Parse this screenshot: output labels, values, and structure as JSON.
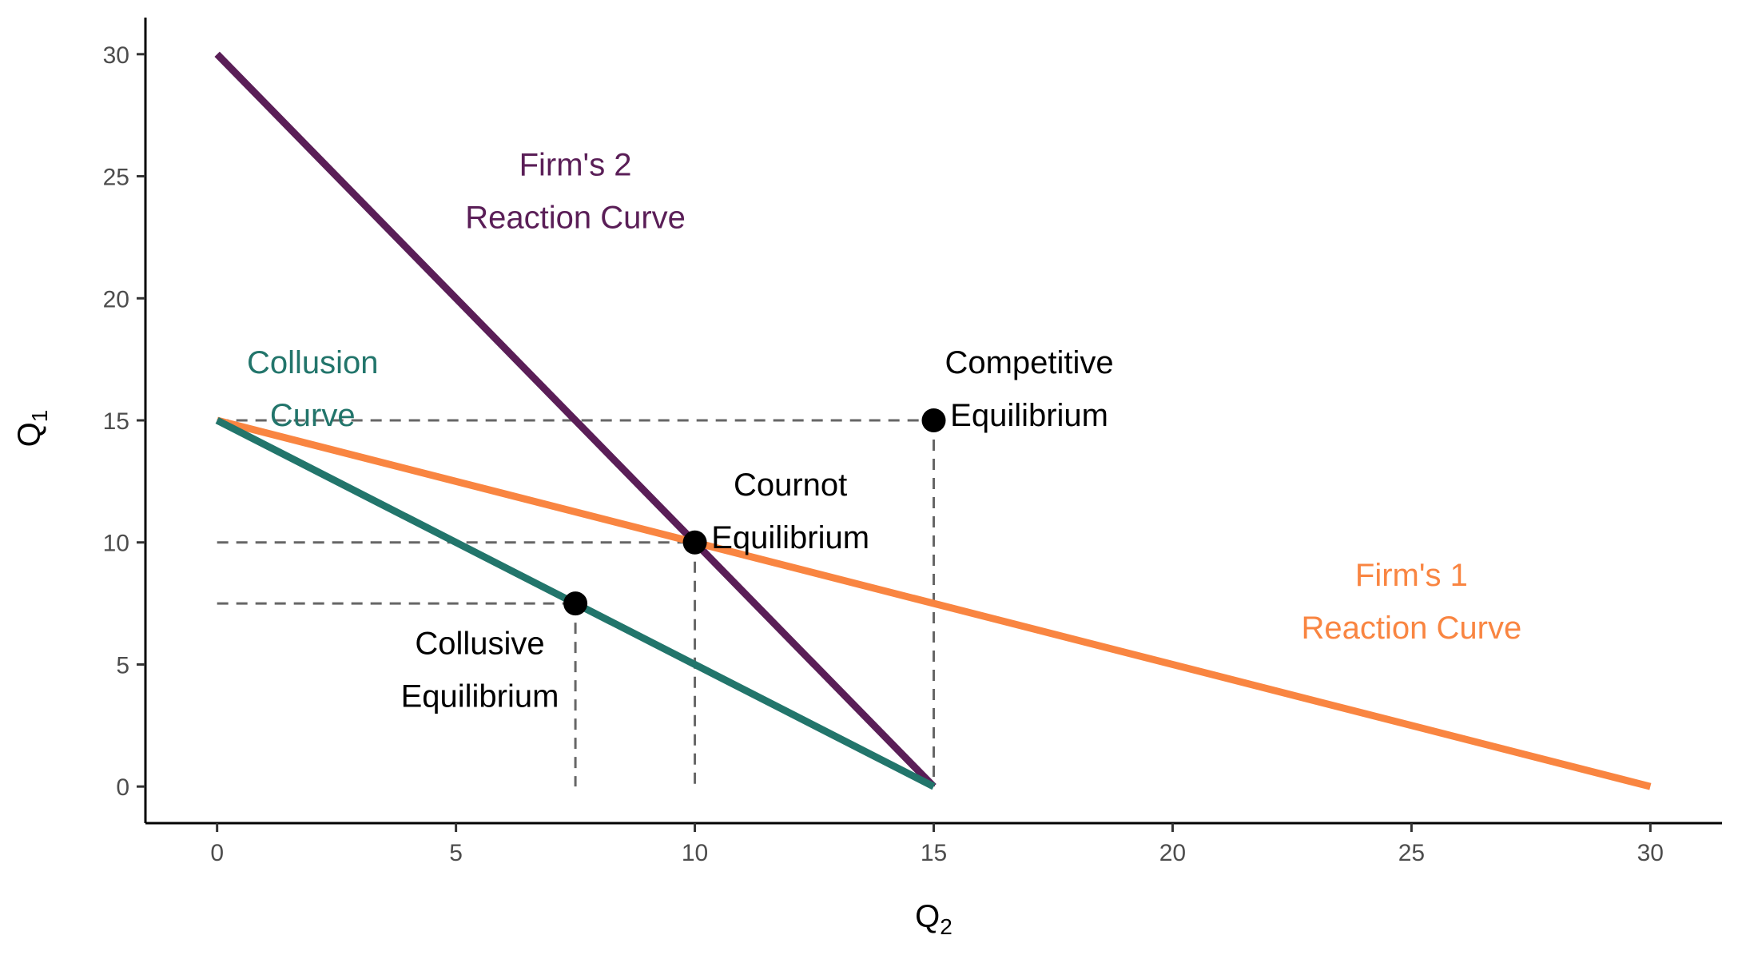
{
  "chart_data": {
    "type": "line",
    "xlabel": "Q",
    "xlabel_sub": "2",
    "ylabel": "Q",
    "ylabel_sub": "1",
    "xlim": [
      -1.5,
      31.5
    ],
    "ylim": [
      -1.5,
      31.5
    ],
    "x_ticks": [
      0,
      5,
      10,
      15,
      20,
      25,
      30
    ],
    "y_ticks": [
      0,
      5,
      10,
      15,
      20,
      25,
      30
    ],
    "grid": false,
    "legend": "none",
    "series": [
      {
        "key": "firm2",
        "color": "#5a1e57",
        "x": [
          0,
          15
        ],
        "y": [
          30,
          0
        ]
      },
      {
        "key": "firm1",
        "color": "#f98541",
        "x": [
          0,
          30
        ],
        "y": [
          15,
          0
        ]
      },
      {
        "key": "collusion",
        "color": "#22756b",
        "x": [
          0,
          15
        ],
        "y": [
          15,
          0
        ]
      }
    ],
    "points": [
      {
        "key": "competitive",
        "x": 15,
        "y": 15
      },
      {
        "key": "cournot",
        "x": 10,
        "y": 10
      },
      {
        "key": "collusive",
        "x": 7.5,
        "y": 7.5
      }
    ],
    "guide_color": "#666666",
    "annotations": [
      {
        "key": "firm2-label",
        "lines": [
          "Firm's 2",
          "Reaction Curve"
        ],
        "x": 7.5,
        "y": 24.7,
        "color": "#5a1e57"
      },
      {
        "key": "firm1-label",
        "lines": [
          "Firm's 1",
          "Reaction Curve"
        ],
        "x": 25,
        "y": 7.9,
        "color": "#f98541"
      },
      {
        "key": "collusion-label",
        "lines": [
          "Collusion",
          "Curve"
        ],
        "x": 2,
        "y": 16.6,
        "color": "#22756b"
      },
      {
        "key": "competitive-label",
        "lines": [
          "Competitive",
          "Equilibrium"
        ],
        "x": 17,
        "y": 16.6,
        "color": "#000000"
      },
      {
        "key": "cournot-label",
        "lines": [
          "Cournot",
          "Equilibrium"
        ],
        "x": 12,
        "y": 11.6,
        "color": "#000000"
      },
      {
        "key": "collusive-label",
        "lines": [
          "Collusive",
          "Equilibrium"
        ],
        "x": 5.5,
        "y": 5.1,
        "color": "#000000"
      }
    ]
  }
}
